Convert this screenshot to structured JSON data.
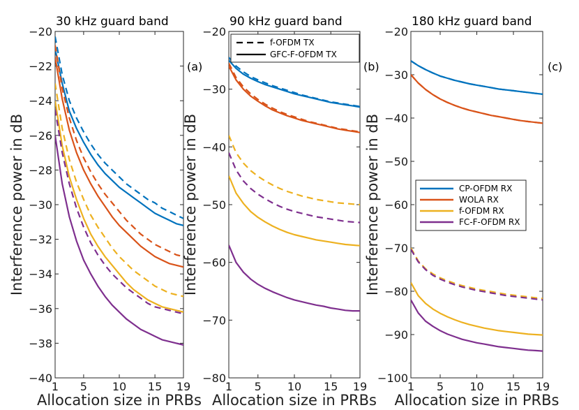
{
  "chart_data": [
    {
      "type": "line",
      "title": "30 kHz guard band",
      "panel_tag": "(a)",
      "xlabel": "Allocation size in PRBs",
      "ylabel": "Interference power in dB",
      "xlim": [
        1,
        19
      ],
      "ylim": [
        -40,
        -20
      ],
      "xticks": [
        1,
        5,
        10,
        15,
        19
      ],
      "yticks": [
        -40,
        -38,
        -36,
        -34,
        -32,
        -30,
        -28,
        -26,
        -24,
        -22,
        -20
      ],
      "ytick_labels": [
        "−40",
        "−38",
        "−36",
        "−34",
        "−32",
        "−30",
        "−28",
        "−26",
        "−24",
        "−22",
        "−20"
      ],
      "x": [
        1,
        2,
        3,
        4,
        5,
        6,
        7,
        8,
        9,
        10,
        11,
        12,
        13,
        14,
        15,
        16,
        17,
        18,
        19
      ],
      "series": [
        {
          "name": "CP-OFDM RX, f-OFDM TX",
          "color": "#0072BD",
          "dash": true,
          "values": [
            -20.3,
            -22.5,
            -24.0,
            -25.0,
            -25.8,
            -26.5,
            -27.1,
            -27.6,
            -28.0,
            -28.4,
            -28.8,
            -29.1,
            -29.4,
            -29.7,
            -29.9,
            -30.2,
            -30.4,
            -30.6,
            -30.8
          ]
        },
        {
          "name": "CP-OFDM RX, GFC-F-OFDM TX",
          "color": "#0072BD",
          "dash": false,
          "values": [
            -21.0,
            -23.0,
            -24.6,
            -25.6,
            -26.4,
            -27.1,
            -27.7,
            -28.2,
            -28.6,
            -29.0,
            -29.3,
            -29.6,
            -29.9,
            -30.2,
            -30.5,
            -30.7,
            -30.9,
            -31.1,
            -31.2
          ]
        },
        {
          "name": "WOLA RX, f-OFDM TX",
          "color": "#D95319",
          "dash": true,
          "values": [
            -20.8,
            -23.3,
            -25.0,
            -26.3,
            -27.3,
            -28.1,
            -28.8,
            -29.4,
            -29.9,
            -30.4,
            -30.9,
            -31.3,
            -31.7,
            -32.0,
            -32.3,
            -32.5,
            -32.7,
            -32.9,
            -33.0
          ]
        },
        {
          "name": "WOLA RX, GFC-F-OFDM TX",
          "color": "#D95319",
          "dash": false,
          "values": [
            -21.5,
            -23.9,
            -25.7,
            -27.0,
            -28.0,
            -28.8,
            -29.5,
            -30.1,
            -30.7,
            -31.2,
            -31.6,
            -32.0,
            -32.4,
            -32.7,
            -33.0,
            -33.2,
            -33.4,
            -33.5,
            -33.6
          ]
        },
        {
          "name": "f-OFDM RX, f-OFDM TX",
          "color": "#EDB120",
          "dash": true,
          "values": [
            -23.0,
            -25.6,
            -27.4,
            -28.7,
            -29.7,
            -30.6,
            -31.3,
            -31.9,
            -32.5,
            -33.0,
            -33.4,
            -33.8,
            -34.1,
            -34.4,
            -34.7,
            -34.9,
            -35.1,
            -35.2,
            -35.3
          ]
        },
        {
          "name": "f-OFDM RX, GFC-F-OFDM TX",
          "color": "#EDB120",
          "dash": false,
          "values": [
            -24.0,
            -26.6,
            -28.4,
            -29.7,
            -30.8,
            -31.7,
            -32.4,
            -33.0,
            -33.5,
            -34.0,
            -34.5,
            -34.9,
            -35.2,
            -35.5,
            -35.7,
            -35.9,
            -36.0,
            -36.1,
            -36.2
          ]
        },
        {
          "name": "FC-F-OFDM RX, f-OFDM TX",
          "color": "#7E2F8E",
          "dash": true,
          "values": [
            -24.5,
            -27.0,
            -28.8,
            -30.2,
            -31.3,
            -32.2,
            -32.9,
            -33.5,
            -34.0,
            -34.4,
            -34.8,
            -35.1,
            -35.4,
            -35.7,
            -35.9,
            -36.0,
            -36.1,
            -36.2,
            -36.3
          ]
        },
        {
          "name": "FC-F-OFDM RX, GFC-F-OFDM TX",
          "color": "#7E2F8E",
          "dash": false,
          "values": [
            -26.0,
            -28.8,
            -30.7,
            -32.1,
            -33.2,
            -34.0,
            -34.7,
            -35.3,
            -35.8,
            -36.2,
            -36.6,
            -36.9,
            -37.2,
            -37.4,
            -37.6,
            -37.8,
            -37.9,
            -38.0,
            -38.1
          ]
        }
      ]
    },
    {
      "type": "line",
      "title": "90 kHz guard band",
      "panel_tag": "(b)",
      "xlabel": "Allocation size in PRBs",
      "ylabel": "Interference power in dB",
      "xlim": [
        1,
        19
      ],
      "ylim": [
        -80,
        -20
      ],
      "xticks": [
        1,
        5,
        10,
        15,
        19
      ],
      "yticks": [
        -80,
        -70,
        -60,
        -50,
        -40,
        -30,
        -20
      ],
      "ytick_labels": [
        "−80",
        "−70",
        "−60",
        "−50",
        "−40",
        "−30",
        "−20"
      ],
      "x": [
        1,
        2,
        3,
        4,
        5,
        6,
        7,
        8,
        9,
        10,
        11,
        12,
        13,
        14,
        15,
        16,
        17,
        18,
        19
      ],
      "series": [
        {
          "name": "CP-OFDM RX, f-OFDM TX",
          "color": "#0072BD",
          "dash": true,
          "values": [
            -24.5,
            -26.0,
            -27.0,
            -27.8,
            -28.4,
            -28.9,
            -29.4,
            -29.8,
            -30.2,
            -30.6,
            -31.0,
            -31.3,
            -31.6,
            -31.9,
            -32.2,
            -32.4,
            -32.6,
            -32.8,
            -33.0
          ]
        },
        {
          "name": "CP-OFDM RX, GFC-F-OFDM TX",
          "color": "#0072BD",
          "dash": false,
          "values": [
            -25.0,
            -26.4,
            -27.4,
            -28.1,
            -28.7,
            -29.2,
            -29.6,
            -30.0,
            -30.4,
            -30.8,
            -31.1,
            -31.4,
            -31.7,
            -32.0,
            -32.3,
            -32.5,
            -32.7,
            -32.9,
            -33.1
          ]
        },
        {
          "name": "WOLA RX, f-OFDM TX",
          "color": "#D95319",
          "dash": true,
          "values": [
            -25.5,
            -28.0,
            -29.6,
            -30.8,
            -31.8,
            -32.6,
            -33.3,
            -33.9,
            -34.4,
            -34.8,
            -35.2,
            -35.6,
            -35.9,
            -36.2,
            -36.5,
            -36.8,
            -37.0,
            -37.2,
            -37.4
          ]
        },
        {
          "name": "WOLA RX, GFC-F-OFDM TX",
          "color": "#D95319",
          "dash": false,
          "values": [
            -26.0,
            -28.4,
            -30.0,
            -31.2,
            -32.1,
            -32.9,
            -33.6,
            -34.1,
            -34.6,
            -35.0,
            -35.4,
            -35.7,
            -36.0,
            -36.3,
            -36.6,
            -36.9,
            -37.1,
            -37.3,
            -37.5
          ]
        },
        {
          "name": "f-OFDM RX, f-OFDM TX",
          "color": "#EDB120",
          "dash": true,
          "values": [
            -38.0,
            -41.0,
            -42.8,
            -44.1,
            -45.1,
            -45.9,
            -46.6,
            -47.2,
            -47.7,
            -48.1,
            -48.5,
            -48.8,
            -49.1,
            -49.3,
            -49.5,
            -49.7,
            -49.8,
            -49.9,
            -50.0
          ]
        },
        {
          "name": "f-OFDM RX, GFC-F-OFDM TX",
          "color": "#EDB120",
          "dash": false,
          "values": [
            -45.0,
            -48.0,
            -49.8,
            -51.2,
            -52.2,
            -53.0,
            -53.7,
            -54.3,
            -54.8,
            -55.2,
            -55.5,
            -55.8,
            -56.1,
            -56.3,
            -56.5,
            -56.7,
            -56.9,
            -57.0,
            -57.1
          ]
        },
        {
          "name": "FC-F-OFDM RX, f-OFDM TX",
          "color": "#7E2F8E",
          "dash": true,
          "values": [
            -41.0,
            -44.0,
            -45.9,
            -47.2,
            -48.2,
            -49.0,
            -49.7,
            -50.3,
            -50.8,
            -51.2,
            -51.5,
            -51.8,
            -52.1,
            -52.3,
            -52.5,
            -52.7,
            -52.9,
            -53.0,
            -53.1
          ]
        },
        {
          "name": "FC-F-OFDM RX, GFC-F-OFDM TX",
          "color": "#7E2F8E",
          "dash": false,
          "values": [
            -57.0,
            -60.0,
            -61.7,
            -62.9,
            -63.8,
            -64.5,
            -65.1,
            -65.6,
            -66.1,
            -66.5,
            -66.8,
            -67.1,
            -67.4,
            -67.6,
            -67.9,
            -68.1,
            -68.3,
            -68.4,
            -68.4
          ]
        }
      ],
      "legend": {
        "placement": "top-left",
        "entries": [
          {
            "label": "f-OFDM TX",
            "dash": true
          },
          {
            "label": "GFC-F-OFDM TX",
            "dash": false
          }
        ]
      }
    },
    {
      "type": "line",
      "title": "180 kHz guard band",
      "panel_tag": "(c)",
      "xlabel": "Allocation size in PRBs",
      "ylabel": "Interference power in dB",
      "xlim": [
        1,
        19
      ],
      "ylim": [
        -100,
        -20
      ],
      "xticks": [
        1,
        5,
        10,
        15,
        19
      ],
      "yticks": [
        -100,
        -90,
        -80,
        -70,
        -60,
        -50,
        -40,
        -30,
        -20
      ],
      "ytick_labels": [
        "−100",
        "−90",
        "−80",
        "−70",
        "−60",
        "−50",
        "−40",
        "−30",
        "−20"
      ],
      "x": [
        1,
        2,
        3,
        4,
        5,
        6,
        7,
        8,
        9,
        10,
        11,
        12,
        13,
        14,
        15,
        16,
        17,
        18,
        19
      ],
      "series": [
        {
          "name": "CP-OFDM RX, f-OFDM TX",
          "color": "#0072BD",
          "dash": true,
          "values": [
            -26.8,
            -27.9,
            -28.8,
            -29.6,
            -30.3,
            -30.8,
            -31.3,
            -31.7,
            -32.1,
            -32.4,
            -32.7,
            -33.0,
            -33.3,
            -33.5,
            -33.7,
            -33.9,
            -34.1,
            -34.3,
            -34.5
          ]
        },
        {
          "name": "CP-OFDM RX, GFC-F-OFDM TX",
          "color": "#0072BD",
          "dash": false,
          "values": [
            -26.8,
            -27.9,
            -28.8,
            -29.6,
            -30.3,
            -30.8,
            -31.3,
            -31.7,
            -32.1,
            -32.4,
            -32.7,
            -33.0,
            -33.3,
            -33.5,
            -33.7,
            -33.9,
            -34.1,
            -34.3,
            -34.5
          ]
        },
        {
          "name": "WOLA RX, f-OFDM TX",
          "color": "#D95319",
          "dash": true,
          "values": [
            -30.0,
            -31.9,
            -33.4,
            -34.6,
            -35.6,
            -36.4,
            -37.1,
            -37.7,
            -38.2,
            -38.6,
            -39.0,
            -39.4,
            -39.7,
            -40.0,
            -40.3,
            -40.6,
            -40.8,
            -41.0,
            -41.2
          ]
        },
        {
          "name": "WOLA RX, GFC-F-OFDM TX",
          "color": "#D95319",
          "dash": false,
          "values": [
            -30.0,
            -31.9,
            -33.4,
            -34.6,
            -35.6,
            -36.4,
            -37.1,
            -37.7,
            -38.2,
            -38.6,
            -39.0,
            -39.4,
            -39.7,
            -40.0,
            -40.3,
            -40.6,
            -40.8,
            -41.0,
            -41.2
          ]
        },
        {
          "name": "f-OFDM RX, f-OFDM TX",
          "color": "#EDB120",
          "dash": true,
          "values": [
            -70.0,
            -73.0,
            -74.8,
            -76.0,
            -76.9,
            -77.6,
            -78.2,
            -78.7,
            -79.1,
            -79.5,
            -79.8,
            -80.1,
            -80.4,
            -80.7,
            -80.9,
            -81.1,
            -81.3,
            -81.5,
            -81.7
          ]
        },
        {
          "name": "f-OFDM RX, GFC-F-OFDM TX",
          "color": "#EDB120",
          "dash": false,
          "values": [
            -78.0,
            -81.0,
            -82.8,
            -84.1,
            -85.1,
            -85.9,
            -86.6,
            -87.2,
            -87.7,
            -88.1,
            -88.5,
            -88.8,
            -89.1,
            -89.3,
            -89.5,
            -89.7,
            -89.9,
            -90.0,
            -90.1
          ]
        },
        {
          "name": "FC-F-OFDM RX, f-OFDM TX",
          "color": "#7E2F8E",
          "dash": true,
          "values": [
            -70.3,
            -73.2,
            -75.0,
            -76.3,
            -77.2,
            -77.9,
            -78.5,
            -79.0,
            -79.4,
            -79.8,
            -80.1,
            -80.4,
            -80.7,
            -81.0,
            -81.2,
            -81.4,
            -81.6,
            -81.8,
            -82.0
          ]
        },
        {
          "name": "FC-F-OFDM RX, GFC-F-OFDM TX",
          "color": "#7E2F8E",
          "dash": false,
          "values": [
            -82.0,
            -85.0,
            -86.9,
            -88.1,
            -89.1,
            -89.9,
            -90.5,
            -91.1,
            -91.5,
            -91.9,
            -92.2,
            -92.5,
            -92.8,
            -93.0,
            -93.2,
            -93.4,
            -93.6,
            -93.7,
            -93.8
          ]
        }
      ],
      "legend": {
        "placement": "middle-right",
        "entries": [
          {
            "label": "CP-OFDM RX",
            "color": "#0072BD"
          },
          {
            "label": "WOLA RX",
            "color": "#D95319"
          },
          {
            "label": "f-OFDM RX",
            "color": "#EDB120"
          },
          {
            "label": "FC-F-OFDM RX",
            "color": "#7E2F8E"
          }
        ]
      }
    }
  ]
}
